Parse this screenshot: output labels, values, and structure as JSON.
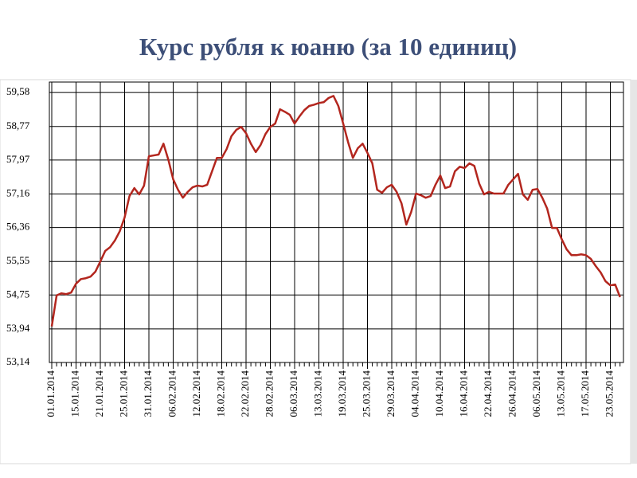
{
  "chart_data": {
    "type": "line",
    "title": "Курс рубля к юаню (за 10 единиц)",
    "categories": [
      "01.01.2014",
      null,
      null,
      null,
      null,
      "15.01.2014",
      null,
      null,
      null,
      null,
      "21.01.2014",
      null,
      null,
      null,
      null,
      "25.01.2014",
      null,
      null,
      null,
      null,
      "31.01.2014",
      null,
      null,
      null,
      null,
      "06.02.2014",
      null,
      null,
      null,
      null,
      "12.02.2014",
      null,
      null,
      null,
      null,
      "18.02.2014",
      null,
      null,
      null,
      null,
      "22.02.2014",
      null,
      null,
      null,
      null,
      "28.02.2014",
      null,
      null,
      null,
      null,
      "06.03.2014",
      null,
      null,
      null,
      null,
      "13.03.2014",
      null,
      null,
      null,
      null,
      "19.03.2014",
      null,
      null,
      null,
      null,
      "25.03.2014",
      null,
      null,
      null,
      null,
      "29.03.2014",
      null,
      null,
      null,
      null,
      "04.04.2014",
      null,
      null,
      null,
      null,
      "10.04.2014",
      null,
      null,
      null,
      null,
      "16.04.2014",
      null,
      null,
      null,
      null,
      "22.04.2014",
      null,
      null,
      null,
      null,
      "26.04.2014",
      null,
      null,
      null,
      null,
      "06.05.2014",
      null,
      null,
      null,
      null,
      "13.05.2014",
      null,
      null,
      null,
      null,
      "17.05.2014",
      null,
      null,
      null,
      null,
      "23.05.2014",
      null,
      null
    ],
    "values": [
      54.0,
      54.74,
      54.79,
      54.77,
      54.81,
      55.02,
      55.13,
      55.15,
      55.19,
      55.31,
      55.55,
      55.8,
      55.89,
      56.05,
      56.27,
      56.6,
      57.11,
      57.3,
      57.15,
      57.36,
      58.06,
      58.08,
      58.1,
      58.36,
      57.98,
      57.51,
      57.26,
      57.07,
      57.21,
      57.32,
      57.36,
      57.34,
      57.38,
      57.7,
      58.02,
      58.02,
      58.23,
      58.54,
      58.69,
      58.76,
      58.61,
      58.36,
      58.16,
      58.33,
      58.59,
      58.76,
      58.84,
      59.18,
      59.12,
      59.05,
      58.84,
      59.01,
      59.16,
      59.26,
      59.29,
      59.33,
      59.35,
      59.45,
      59.5,
      59.26,
      58.84,
      58.4,
      58.02,
      58.25,
      58.36,
      58.14,
      57.89,
      57.26,
      57.19,
      57.32,
      57.38,
      57.21,
      56.94,
      56.43,
      56.73,
      57.17,
      57.13,
      57.07,
      57.11,
      57.38,
      57.6,
      57.3,
      57.34,
      57.7,
      57.81,
      57.78,
      57.89,
      57.83,
      57.41,
      57.15,
      57.21,
      57.17,
      57.17,
      57.17,
      57.38,
      57.51,
      57.64,
      57.15,
      57.02,
      57.26,
      57.28,
      57.07,
      56.81,
      56.35,
      56.35,
      56.08,
      55.84,
      55.7,
      55.7,
      55.72,
      55.7,
      55.61,
      55.44,
      55.29,
      55.08,
      54.98,
      55.0,
      54.7
    ],
    "color": "#b3261e",
    "ylim": [
      53.14,
      59.83
    ],
    "yticks": [
      {
        "value": 53.14,
        "label": "53,14"
      },
      {
        "value": 53.94,
        "label": "53,94"
      },
      {
        "value": 54.75,
        "label": "54,75"
      },
      {
        "value": 55.55,
        "label": "55,55"
      },
      {
        "value": 56.36,
        "label": "56,36"
      },
      {
        "value": 57.16,
        "label": "57,16"
      },
      {
        "value": 57.97,
        "label": "57,97"
      },
      {
        "value": 58.77,
        "label": "58,77"
      },
      {
        "value": 59.58,
        "label": "59,58"
      }
    ],
    "grid": true
  }
}
